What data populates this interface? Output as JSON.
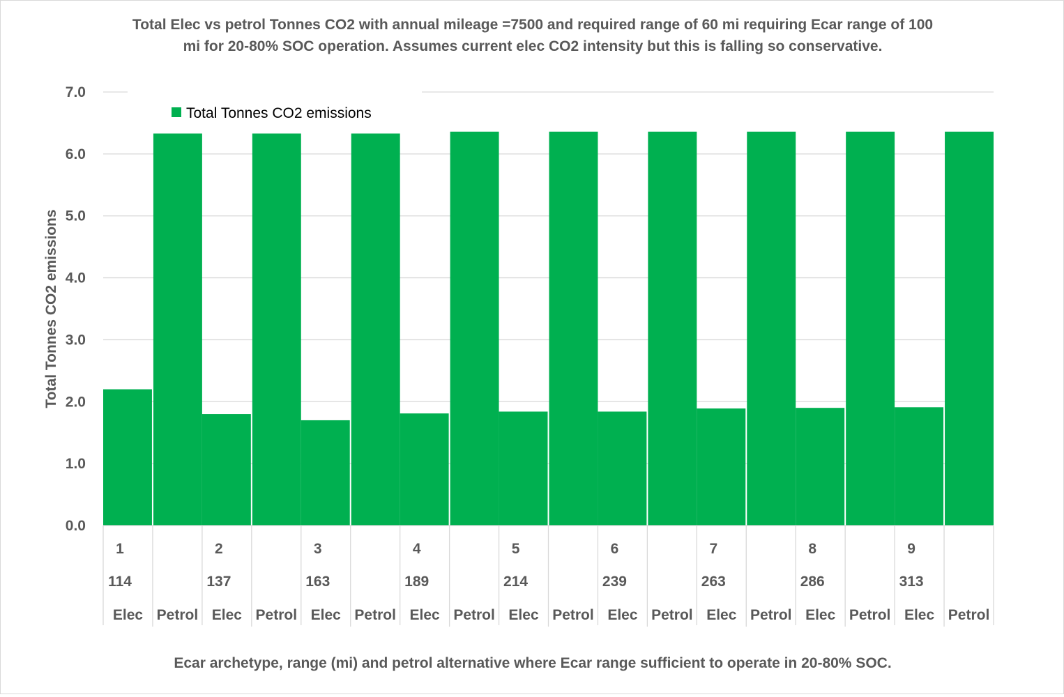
{
  "chart_data": {
    "type": "bar",
    "title_lines": [
      "Total Elec vs petrol Tonnes CO2 with annual mileage =7500 and required range of 60 mi requiring Ecar range of 100",
      "mi for 20-80% SOC operation. Assumes current elec CO2 intensity but this is falling so conservative."
    ],
    "xlabel": "Ecar archetype, range (mi) and petrol alternative where Ecar range sufficient to operate in 20-80% SOC.",
    "ylabel": "Total Tonnes CO2 emissions",
    "ylim": [
      0,
      7
    ],
    "yticks": [
      "0.0",
      "1.0",
      "2.0",
      "3.0",
      "4.0",
      "5.0",
      "6.0",
      "7.0"
    ],
    "grid": true,
    "legend_position": "top-left",
    "bar_color": "#00b050",
    "series": [
      {
        "name": "Total Tonnes CO2 emissions",
        "values": [
          2.2,
          6.33,
          1.8,
          6.33,
          1.7,
          6.33,
          1.81,
          6.36,
          1.84,
          6.36,
          1.84,
          6.36,
          1.89,
          6.36,
          1.9,
          6.36,
          1.91,
          6.36
        ]
      }
    ],
    "category_groups": [
      {
        "archetype": "1",
        "range": "114",
        "elec_label": "Elec",
        "petrol_label": "Petrol"
      },
      {
        "archetype": "2",
        "range": "137",
        "elec_label": "Elec",
        "petrol_label": "Petrol"
      },
      {
        "archetype": "3",
        "range": "163",
        "elec_label": "Elec",
        "petrol_label": "Petrol"
      },
      {
        "archetype": "4",
        "range": "189",
        "elec_label": "Elec",
        "petrol_label": "Petrol"
      },
      {
        "archetype": "5",
        "range": "214",
        "elec_label": "Elec",
        "petrol_label": "Petrol"
      },
      {
        "archetype": "6",
        "range": "239",
        "elec_label": "Elec",
        "petrol_label": "Petrol"
      },
      {
        "archetype": "7",
        "range": "263",
        "elec_label": "Elec",
        "petrol_label": "Petrol"
      },
      {
        "archetype": "8",
        "range": "286",
        "elec_label": "Elec",
        "petrol_label": "Petrol"
      },
      {
        "archetype": "9",
        "range": "313",
        "elec_label": "Elec",
        "petrol_label": "Petrol"
      }
    ]
  }
}
